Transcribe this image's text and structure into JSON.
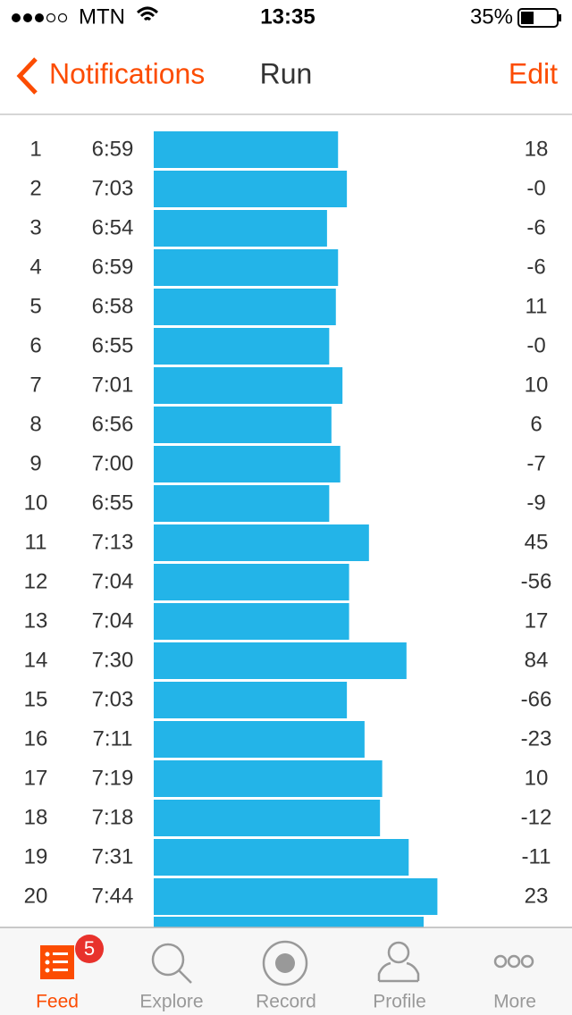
{
  "status_bar": {
    "carrier": "MTN",
    "time": "13:35",
    "battery": "35%"
  },
  "nav": {
    "back": "Notifications",
    "title": "Run",
    "action": "Edit"
  },
  "splits": [
    {
      "split": "1",
      "pace": "6:59",
      "elevation": "18"
    },
    {
      "split": "2",
      "pace": "7:03",
      "elevation": "-0"
    },
    {
      "split": "3",
      "pace": "6:54",
      "elevation": "-6"
    },
    {
      "split": "4",
      "pace": "6:59",
      "elevation": "-6"
    },
    {
      "split": "5",
      "pace": "6:58",
      "elevation": "11"
    },
    {
      "split": "6",
      "pace": "6:55",
      "elevation": "-0"
    },
    {
      "split": "7",
      "pace": "7:01",
      "elevation": "10"
    },
    {
      "split": "8",
      "pace": "6:56",
      "elevation": "6"
    },
    {
      "split": "9",
      "pace": "7:00",
      "elevation": "-7"
    },
    {
      "split": "10",
      "pace": "6:55",
      "elevation": "-9"
    },
    {
      "split": "11",
      "pace": "7:13",
      "elevation": "45"
    },
    {
      "split": "12",
      "pace": "7:04",
      "elevation": "-56"
    },
    {
      "split": "13",
      "pace": "7:04",
      "elevation": "17"
    },
    {
      "split": "14",
      "pace": "7:30",
      "elevation": "84"
    },
    {
      "split": "15",
      "pace": "7:03",
      "elevation": "-66"
    },
    {
      "split": "16",
      "pace": "7:11",
      "elevation": "-23"
    },
    {
      "split": "17",
      "pace": "7:19",
      "elevation": "10"
    },
    {
      "split": "18",
      "pace": "7:18",
      "elevation": "-12"
    },
    {
      "split": "19",
      "pace": "7:31",
      "elevation": "-11"
    },
    {
      "split": "20",
      "pace": "7:44",
      "elevation": "23"
    }
  ],
  "tab_bar": {
    "badge": "5",
    "tabs": [
      "Feed",
      "Explore",
      "Record",
      "Profile",
      "More"
    ]
  }
}
